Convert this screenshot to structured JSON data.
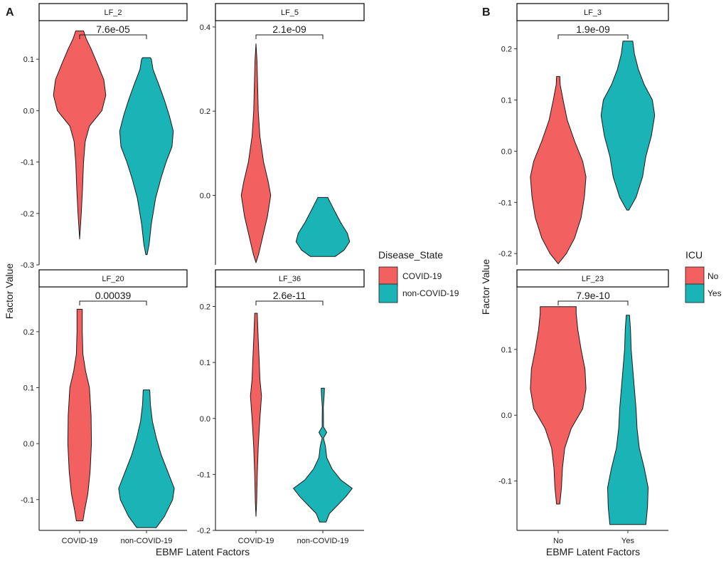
{
  "colors": {
    "covid": "#F26160",
    "noncovid": "#1BB4B6",
    "axis": "#000000"
  },
  "panel_labels": [
    "A",
    "B"
  ],
  "chart_data": [
    {
      "type": "violin",
      "panel": "A",
      "ylabel": "Factor Value",
      "xlabel": "EBMF Latent Factors",
      "categories": [
        "COVID-19",
        "non-COVID-19"
      ],
      "legend": {
        "title": "Disease_State",
        "entries": [
          "COVID-19",
          "non-COVID-19"
        ],
        "placement": "right"
      },
      "facets": [
        {
          "title": "LF_2",
          "pvalue": "7.6e-05",
          "ylim": [
            -0.3,
            0.175
          ],
          "yticks": [
            0.1,
            0.0,
            -0.1,
            -0.2,
            -0.3
          ],
          "ytick_labels": [
            "0.1",
            "0.0",
            "-0.1",
            "-0.2",
            "-0.3"
          ],
          "violins": [
            {
              "name": "COVID-19",
              "profile": [
                [
                  -0.25,
                  0.0
                ],
                [
                  -0.23,
                  0.02
                ],
                [
                  -0.2,
                  0.05
                ],
                [
                  -0.15,
                  0.09
                ],
                [
                  -0.1,
                  0.12
                ],
                [
                  -0.06,
                  0.17
                ],
                [
                  -0.03,
                  0.3
                ],
                [
                  0.0,
                  0.68
                ],
                [
                  0.03,
                  0.8
                ],
                [
                  0.06,
                  0.74
                ],
                [
                  0.09,
                  0.55
                ],
                [
                  0.12,
                  0.35
                ],
                [
                  0.14,
                  0.2
                ],
                [
                  0.155,
                  0.12
                ]
              ]
            },
            {
              "name": "non-COVID-19",
              "profile": [
                [
                  -0.28,
                  0.02
                ],
                [
                  -0.26,
                  0.08
                ],
                [
                  -0.22,
                  0.15
                ],
                [
                  -0.17,
                  0.28
                ],
                [
                  -0.13,
                  0.45
                ],
                [
                  -0.1,
                  0.6
                ],
                [
                  -0.07,
                  0.78
                ],
                [
                  -0.04,
                  0.82
                ],
                [
                  -0.01,
                  0.7
                ],
                [
                  0.02,
                  0.55
                ],
                [
                  0.05,
                  0.38
                ],
                [
                  0.08,
                  0.2
                ],
                [
                  0.1,
                  0.15
                ],
                [
                  0.103,
                  0.12
                ]
              ]
            }
          ]
        },
        {
          "title": "LF_5",
          "pvalue": "2.1e-09",
          "ylim": [
            -0.165,
            0.415
          ],
          "yticks": [
            0.4,
            0.2,
            0.0
          ],
          "ytick_labels": [
            "0.4",
            "0.2",
            "0.0"
          ],
          "violins": [
            {
              "name": "COVID-19",
              "profile": [
                [
                  -0.16,
                  0.0
                ],
                [
                  -0.14,
                  0.08
                ],
                [
                  -0.1,
                  0.2
                ],
                [
                  -0.05,
                  0.35
                ],
                [
                  0.0,
                  0.45
                ],
                [
                  0.03,
                  0.38
                ],
                [
                  0.08,
                  0.23
                ],
                [
                  0.14,
                  0.12
                ],
                [
                  0.2,
                  0.07
                ],
                [
                  0.26,
                  0.05
                ],
                [
                  0.32,
                  0.03
                ],
                [
                  0.36,
                  0.0
                ]
              ]
            },
            {
              "name": "non-COVID-19",
              "profile": [
                [
                  -0.145,
                  0.38
                ],
                [
                  -0.13,
                  0.65
                ],
                [
                  -0.11,
                  0.82
                ],
                [
                  -0.09,
                  0.75
                ],
                [
                  -0.065,
                  0.55
                ],
                [
                  -0.04,
                  0.38
                ],
                [
                  -0.02,
                  0.25
                ],
                [
                  -0.005,
                  0.15
                ]
              ]
            }
          ]
        },
        {
          "title": "LF_20",
          "pvalue": "0.00039",
          "ylim": [
            -0.155,
            0.28
          ],
          "yticks": [
            0.2,
            0.1,
            0.0,
            -0.1
          ],
          "ytick_labels": [
            "0.2",
            "0.1",
            "0.0",
            "-0.1"
          ],
          "violins": [
            {
              "name": "COVID-19",
              "profile": [
                [
                  -0.138,
                  0.1
                ],
                [
                  -0.12,
                  0.15
                ],
                [
                  -0.09,
                  0.25
                ],
                [
                  -0.05,
                  0.32
                ],
                [
                  0.0,
                  0.36
                ],
                [
                  0.05,
                  0.35
                ],
                [
                  0.1,
                  0.3
                ],
                [
                  0.13,
                  0.18
                ],
                [
                  0.16,
                  0.1
                ],
                [
                  0.2,
                  0.08
                ],
                [
                  0.24,
                  0.08
                ]
              ]
            },
            {
              "name": "non-COVID-19",
              "profile": [
                [
                  -0.15,
                  0.3
                ],
                [
                  -0.13,
                  0.55
                ],
                [
                  -0.1,
                  0.8
                ],
                [
                  -0.08,
                  0.85
                ],
                [
                  -0.05,
                  0.65
                ],
                [
                  -0.02,
                  0.45
                ],
                [
                  0.01,
                  0.3
                ],
                [
                  0.04,
                  0.18
                ],
                [
                  0.07,
                  0.12
                ],
                [
                  0.096,
                  0.1
                ]
              ]
            }
          ]
        },
        {
          "title": "LF_36",
          "pvalue": "2.6e-11",
          "ylim": [
            -0.2,
            0.235
          ],
          "yticks": [
            0.2,
            0.1,
            0.0,
            -0.1,
            -0.2
          ],
          "ytick_labels": [
            "0.2",
            "0.1",
            "0.0",
            "-0.1",
            "-0.2"
          ],
          "violins": [
            {
              "name": "COVID-19",
              "profile": [
                [
                  -0.175,
                  0.0
                ],
                [
                  -0.15,
                  0.02
                ],
                [
                  -0.1,
                  0.04
                ],
                [
                  -0.05,
                  0.07
                ],
                [
                  0.0,
                  0.12
                ],
                [
                  0.04,
                  0.17
                ],
                [
                  0.07,
                  0.12
                ],
                [
                  0.1,
                  0.1
                ],
                [
                  0.14,
                  0.07
                ],
                [
                  0.17,
                  0.05
                ],
                [
                  0.188,
                  0.04
                ]
              ]
            },
            {
              "name": "non-COVID-19",
              "profile": [
                [
                  -0.185,
                  0.1
                ],
                [
                  -0.17,
                  0.2
                ],
                [
                  -0.155,
                  0.45
                ],
                [
                  -0.14,
                  0.7
                ],
                [
                  -0.125,
                  0.9
                ],
                [
                  -0.11,
                  0.55
                ],
                [
                  -0.09,
                  0.28
                ],
                [
                  -0.07,
                  0.12
                ],
                [
                  -0.05,
                  0.08
                ],
                [
                  -0.035,
                  0.02
                ],
                [
                  -0.025,
                  0.12
                ],
                [
                  -0.015,
                  0.02
                ],
                [
                  0.0,
                  0.02
                ],
                [
                  0.02,
                  0.015
                ],
                [
                  0.04,
                  0.04
                ],
                [
                  0.054,
                  0.05
                ]
              ]
            }
          ]
        }
      ]
    },
    {
      "type": "violin",
      "panel": "B",
      "ylabel": "Factor Value",
      "xlabel": "EBMF Latent Factors",
      "categories": [
        "No",
        "Yes"
      ],
      "legend": {
        "title": "ICU",
        "entries": [
          "No",
          "Yes"
        ],
        "placement": "right"
      },
      "facets": [
        {
          "title": "LF_3",
          "pvalue": "1.9e-09",
          "ylim": [
            -0.222,
            0.255
          ],
          "yticks": [
            0.2,
            0.1,
            0.0,
            -0.1,
            -0.2
          ],
          "ytick_labels": [
            "0.2",
            "0.1",
            "0.0",
            "-0.1",
            "-0.2"
          ],
          "violins": [
            {
              "name": "No",
              "profile": [
                [
                  -0.22,
                  0.0
                ],
                [
                  -0.2,
                  0.25
                ],
                [
                  -0.17,
                  0.5
                ],
                [
                  -0.13,
                  0.7
                ],
                [
                  -0.09,
                  0.8
                ],
                [
                  -0.05,
                  0.85
                ],
                [
                  -0.02,
                  0.75
                ],
                [
                  0.02,
                  0.5
                ],
                [
                  0.06,
                  0.28
                ],
                [
                  0.1,
                  0.15
                ],
                [
                  0.13,
                  0.06
                ],
                [
                  0.146,
                  0.05
                ]
              ]
            },
            {
              "name": "Yes",
              "profile": [
                [
                  -0.115,
                  0.03
                ],
                [
                  -0.09,
                  0.25
                ],
                [
                  -0.05,
                  0.45
                ],
                [
                  -0.01,
                  0.55
                ],
                [
                  0.03,
                  0.72
                ],
                [
                  0.07,
                  0.82
                ],
                [
                  0.1,
                  0.75
                ],
                [
                  0.13,
                  0.5
                ],
                [
                  0.16,
                  0.32
                ],
                [
                  0.19,
                  0.2
                ],
                [
                  0.215,
                  0.15
                ]
              ]
            }
          ]
        },
        {
          "title": "LF_23",
          "pvalue": "7.9e-10",
          "ylim": [
            -0.175,
            0.195
          ],
          "yticks": [
            0.1,
            0.0,
            -0.1
          ],
          "ytick_labels": [
            "0.1",
            "0.0",
            "-0.1"
          ],
          "violins": [
            {
              "name": "No",
              "profile": [
                [
                  -0.135,
                  0.05
                ],
                [
                  -0.11,
                  0.1
                ],
                [
                  -0.08,
                  0.13
                ],
                [
                  -0.05,
                  0.2
                ],
                [
                  -0.02,
                  0.4
                ],
                [
                  0.01,
                  0.75
                ],
                [
                  0.04,
                  0.85
                ],
                [
                  0.07,
                  0.82
                ],
                [
                  0.1,
                  0.7
                ],
                [
                  0.13,
                  0.6
                ],
                [
                  0.155,
                  0.55
                ],
                [
                  0.165,
                  0.55
                ]
              ]
            },
            {
              "name": "Yes",
              "profile": [
                [
                  -0.166,
                  0.55
                ],
                [
                  -0.14,
                  0.6
                ],
                [
                  -0.11,
                  0.62
                ],
                [
                  -0.08,
                  0.5
                ],
                [
                  -0.05,
                  0.35
                ],
                [
                  -0.02,
                  0.28
                ],
                [
                  0.01,
                  0.25
                ],
                [
                  0.04,
                  0.2
                ],
                [
                  0.07,
                  0.15
                ],
                [
                  0.1,
                  0.1
                ],
                [
                  0.13,
                  0.08
                ],
                [
                  0.152,
                  0.05
                ]
              ]
            }
          ]
        }
      ]
    }
  ]
}
